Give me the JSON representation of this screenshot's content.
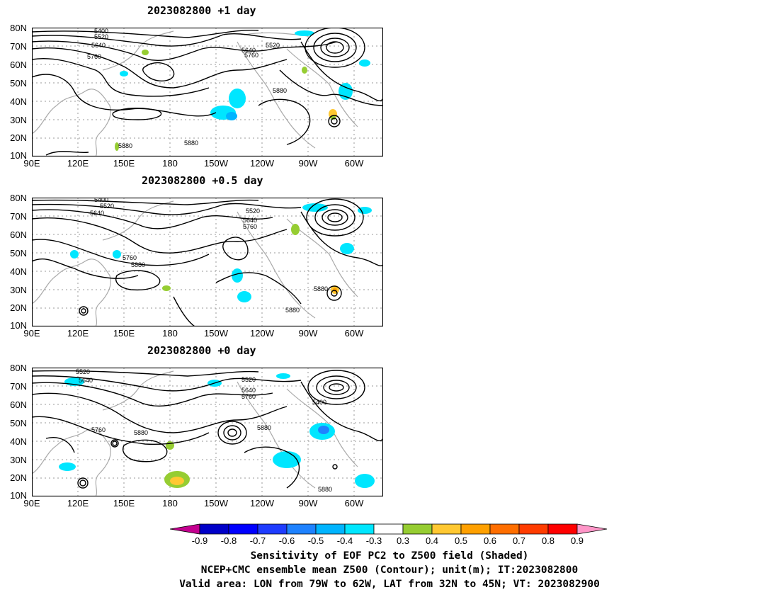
{
  "panels": [
    {
      "title": "2023082800  +1 day",
      "contour_labels": [
        "5400",
        "5520",
        "5640",
        "5760",
        "5640",
        "5760",
        "5520",
        "5880",
        "5880",
        "5880"
      ]
    },
    {
      "title": "2023082800  +0.5 day",
      "contour_labels": [
        "5400",
        "5520",
        "5640",
        "5520",
        "5640",
        "5760",
        "5760",
        "5880",
        "5880",
        "5880"
      ]
    },
    {
      "title": "2023082800  +0 day",
      "contour_labels": [
        "5520",
        "5640",
        "5520",
        "5640",
        "5760",
        "5400",
        "5760",
        "5880",
        "5880",
        "5880"
      ]
    }
  ],
  "lat_labels": [
    "80N",
    "70N",
    "60N",
    "50N",
    "40N",
    "30N",
    "20N",
    "10N"
  ],
  "lon_labels": [
    "90E",
    "120E",
    "150E",
    "180",
    "150W",
    "120W",
    "90W",
    "60W"
  ],
  "colorbar": {
    "labels": [
      "-0.9",
      "-0.8",
      "-0.7",
      "-0.6",
      "-0.5",
      "-0.4",
      "-0.3",
      "0.3",
      "0.4",
      "0.5",
      "0.6",
      "0.7",
      "0.8",
      "0.9"
    ],
    "colors": [
      "#c4008f",
      "#0000c8",
      "#0000ff",
      "#1e3cff",
      "#1e82ff",
      "#00b4ff",
      "#00e6ff",
      "#ffffff",
      "#96cd32",
      "#ffc832",
      "#ffa000",
      "#ff6e00",
      "#ff3c00",
      "#ff0000",
      "#ff96c8"
    ]
  },
  "caption": {
    "line1": "Sensitivity of EOF PC2 to Z500 field (Shaded)",
    "line2": "NCEP+CMC ensemble mean Z500 (Contour); unit(m); IT:2023082800",
    "line3": "Valid area: LON from 79W to 62W, LAT from 32N to 45N; VT: 2023082900"
  }
}
